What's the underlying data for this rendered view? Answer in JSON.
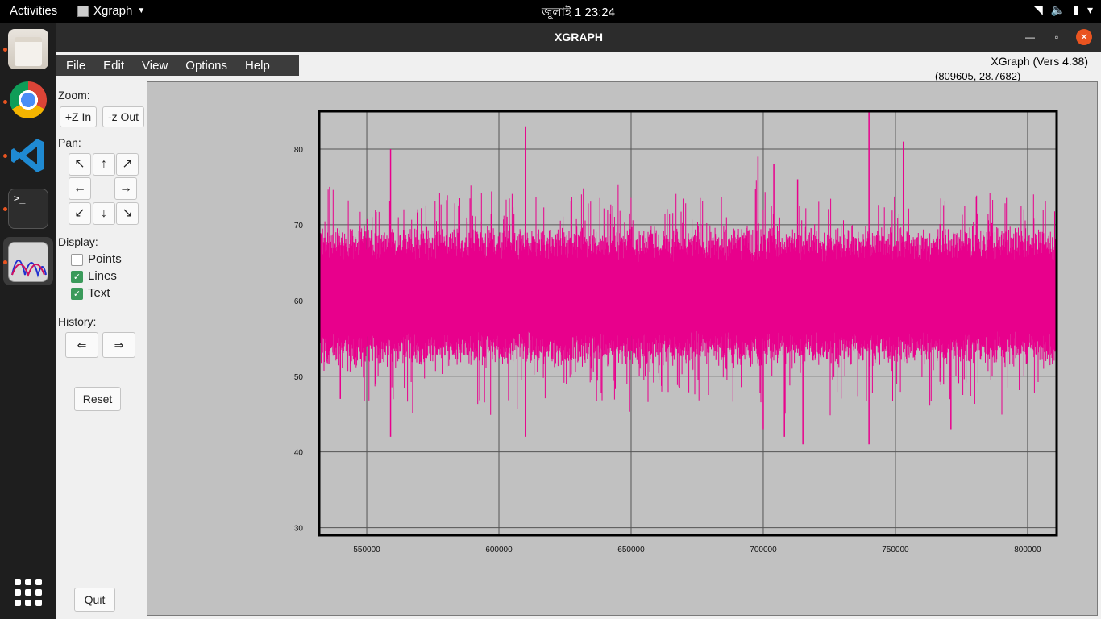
{
  "topbar": {
    "activities": "Activities",
    "app_name": "Xgraph",
    "clock": "জুলাই 1  23:24"
  },
  "window": {
    "title": "XGRAPH",
    "version": "XGraph (Vers 4.38)",
    "coords": "(809605, 28.7682)"
  },
  "menu": [
    "File",
    "Edit",
    "View",
    "Options",
    "Help"
  ],
  "panel": {
    "zoom_label": "Zoom:",
    "zoom_in": "+Z In",
    "zoom_out": "-z Out",
    "pan_label": "Pan:",
    "display_label": "Display:",
    "points": "Points",
    "lines": "Lines",
    "text": "Text",
    "points_checked": false,
    "lines_checked": true,
    "text_checked": true,
    "history_label": "History:",
    "reset": "Reset",
    "quit": "Quit"
  },
  "chart_data": {
    "type": "line",
    "xlim": [
      532000,
      811000
    ],
    "ylim": [
      29,
      85
    ],
    "xticks": [
      550000,
      600000,
      650000,
      700000,
      750000,
      800000
    ],
    "yticks": [
      30,
      40,
      50,
      60,
      70,
      80
    ],
    "xtick_labels": [
      "550000",
      "600000",
      "650000",
      "700000",
      "750000",
      "800000"
    ],
    "ytick_labels": [
      "30",
      "40",
      "50",
      "60",
      "70",
      "80"
    ],
    "grid": true,
    "series": [
      {
        "color": "#e8008c",
        "description_note": "",
        "band_low": 54.5,
        "band_high": 66.5,
        "mean": 60.5,
        "spikes_up": [
          [
            559000,
            80
          ],
          [
            610000,
            83
          ],
          [
            698000,
            79
          ],
          [
            704000,
            78
          ],
          [
            740000,
            85
          ],
          [
            753000,
            81
          ],
          [
            713000,
            76
          ],
          [
            536000,
            75
          ]
        ],
        "spikes_down": [
          [
            559000,
            42
          ],
          [
            610000,
            42
          ],
          [
            700000,
            43
          ],
          [
            708000,
            42
          ],
          [
            715000,
            41
          ],
          [
            740000,
            41
          ],
          [
            771000,
            43
          ],
          [
            540000,
            47
          ]
        ]
      }
    ]
  }
}
